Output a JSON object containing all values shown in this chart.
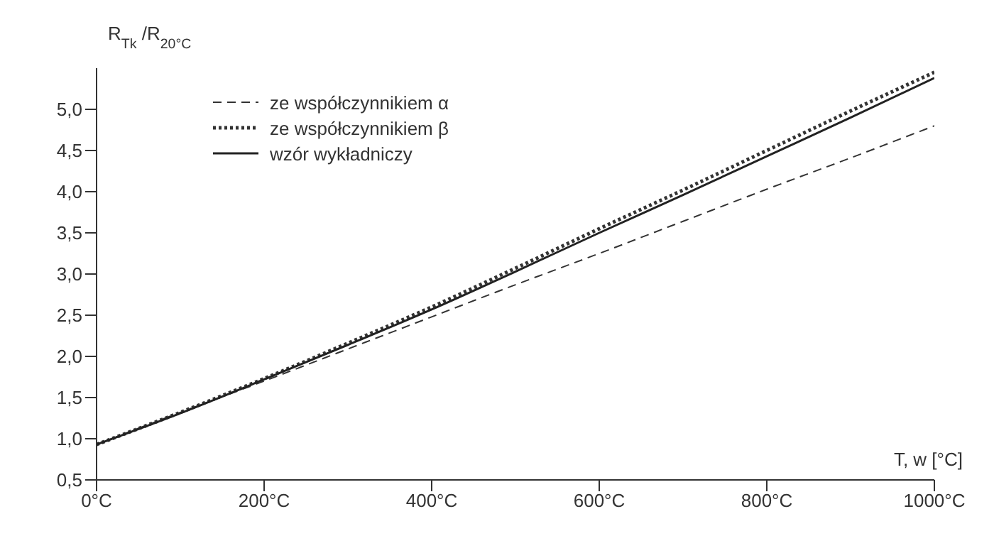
{
  "chart_data": {
    "type": "line",
    "xlabel": "T, w [°C]",
    "ylabel": "R$_{Tk}$/R$_{20°C}$",
    "x": [
      0,
      100,
      200,
      300,
      400,
      500,
      600,
      700,
      800,
      900,
      1000
    ],
    "series": [
      {
        "name": "ze współczynnikiem α",
        "color": "#333333",
        "line_style": "dashed",
        "values": [
          0.93,
          1.32,
          1.7,
          2.09,
          2.48,
          2.87,
          3.25,
          3.64,
          4.03,
          4.41,
          4.8
        ]
      },
      {
        "name": "ze współczynnikiem β",
        "color": "#333333",
        "line_style": "dotted",
        "values": [
          0.93,
          1.32,
          1.73,
          2.16,
          2.6,
          3.07,
          3.55,
          4.02,
          4.5,
          4.98,
          5.45
        ]
      },
      {
        "name": "wzór wykładniczy",
        "color": "#222222",
        "line_style": "solid",
        "values": [
          0.93,
          1.31,
          1.72,
          2.14,
          2.57,
          3.03,
          3.5,
          3.96,
          4.43,
          4.9,
          5.38
        ]
      }
    ],
    "xlim": [
      0,
      1000
    ],
    "ylim": [
      0.5,
      5.5
    ],
    "xticks": [
      {
        "value": 0,
        "label": "0°C"
      },
      {
        "value": 200,
        "label": "200°C"
      },
      {
        "value": 400,
        "label": "400°C"
      },
      {
        "value": 600,
        "label": "600°C"
      },
      {
        "value": 800,
        "label": "800°C"
      },
      {
        "value": 1000,
        "label": "1000°C"
      }
    ],
    "yticks": [
      {
        "value": 0.5,
        "label": "0,5"
      },
      {
        "value": 1,
        "label": "1,0"
      },
      {
        "value": 1.5,
        "label": "1,5"
      },
      {
        "value": 2,
        "label": "2,0"
      },
      {
        "value": 2.5,
        "label": "2,5"
      },
      {
        "value": 3,
        "label": "3,0"
      },
      {
        "value": 3.5,
        "label": "3,5"
      },
      {
        "value": 4,
        "label": "4,0"
      },
      {
        "value": 4.5,
        "label": "4,5"
      },
      {
        "value": 5,
        "label": "5,0"
      }
    ],
    "grid": false,
    "legend": "top left",
    "marker": "none"
  }
}
